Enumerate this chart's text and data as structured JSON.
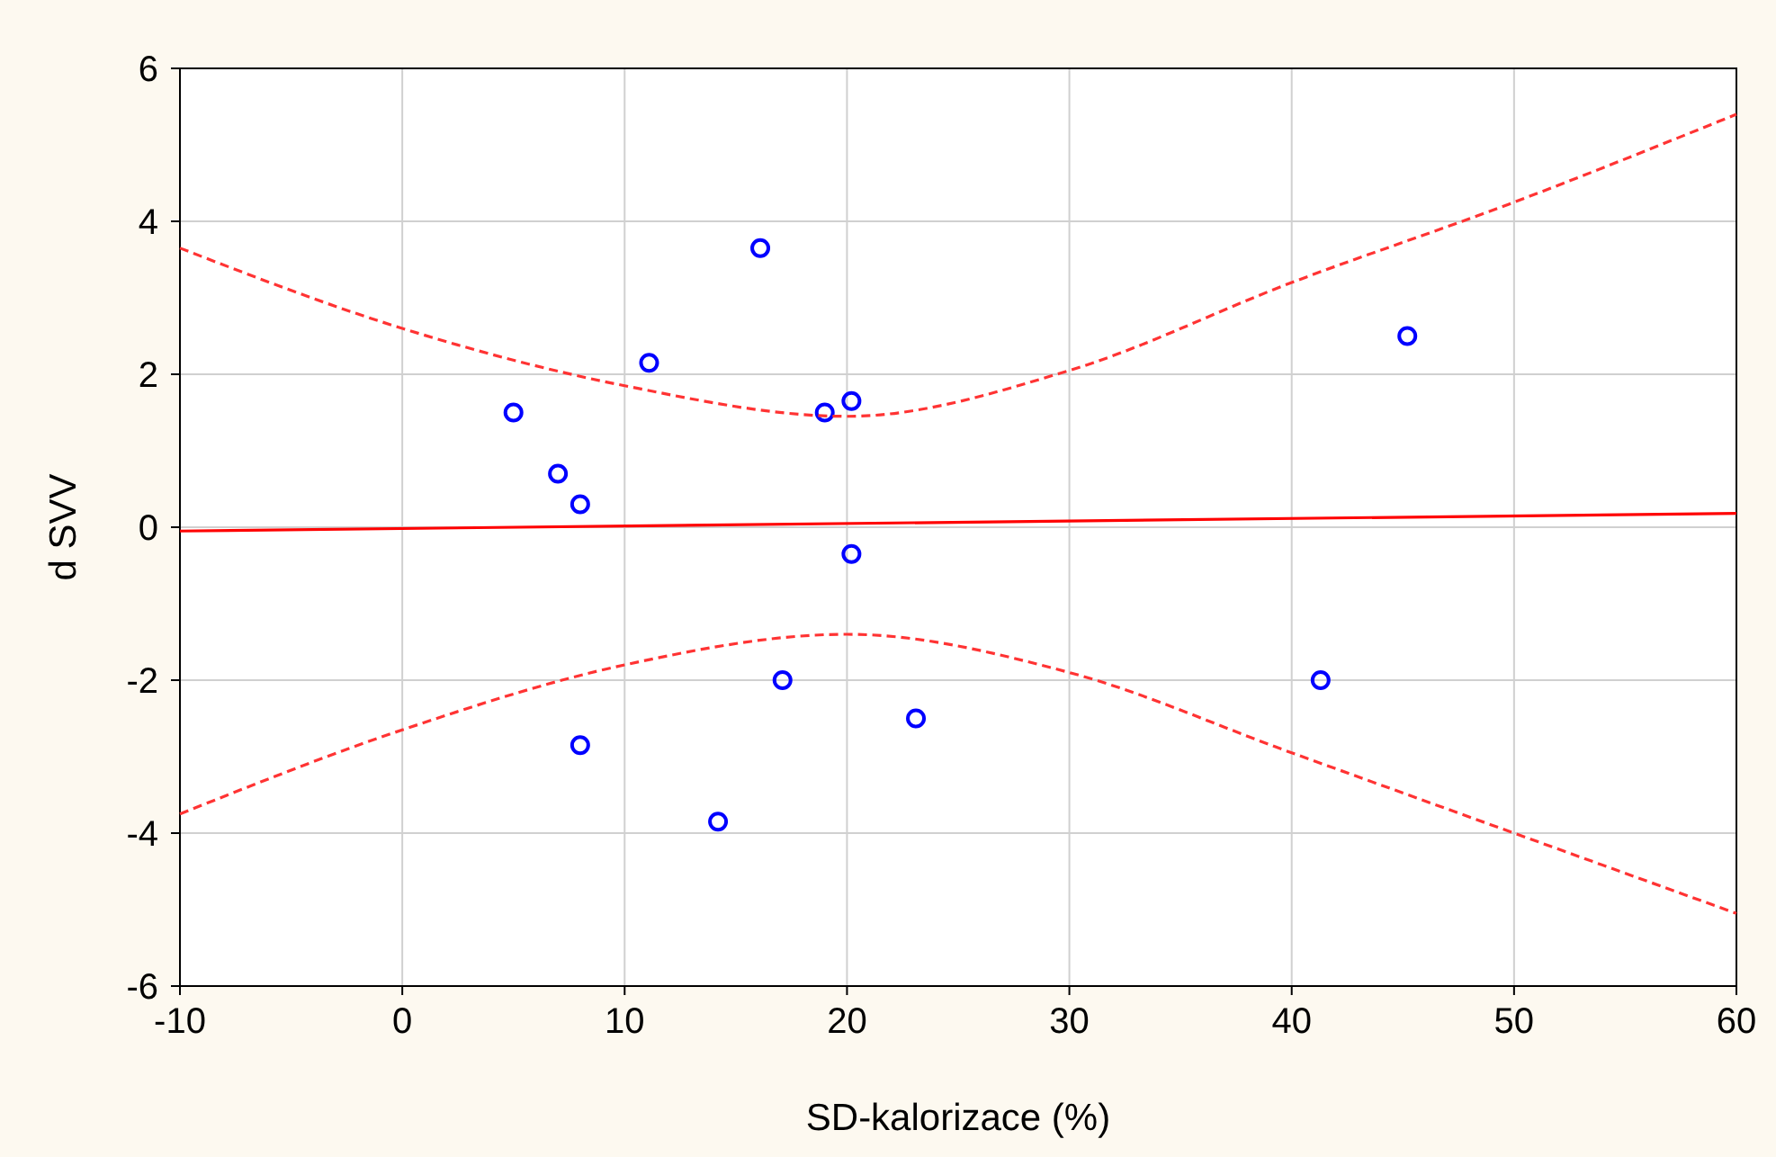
{
  "chart_data": {
    "type": "scatter",
    "xlabel": "SD-kalorizace (%)",
    "ylabel": "d SVV",
    "xlim": [
      -10,
      60
    ],
    "ylim": [
      -6,
      6
    ],
    "xticks": [
      -10,
      0,
      10,
      20,
      30,
      40,
      50,
      60
    ],
    "yticks": [
      -6,
      -4,
      -2,
      0,
      2,
      4,
      6
    ],
    "grid": true,
    "series": [
      {
        "color": "#0000ff",
        "marker": "circle",
        "x": [
          5,
          7,
          8,
          8,
          11.1,
          14.2,
          16.1,
          17.1,
          19,
          20.2,
          20.2,
          23.1,
          41.3,
          45.2
        ],
        "values": [
          1.5,
          0.7,
          0.3,
          -2.85,
          2.15,
          -3.85,
          3.65,
          -2,
          1.5,
          1.65,
          -0.35,
          -2.5,
          -2,
          2.5
        ]
      },
      {
        "type": "line",
        "color": "#ff0000",
        "marker": "none",
        "line_style": "solid",
        "x": [
          -10,
          60
        ],
        "values": [
          -0.05,
          0.18
        ]
      },
      {
        "type": "line",
        "color": "#ff3333",
        "marker": "none",
        "line_style": "dashed",
        "x": [
          -10,
          0,
          10,
          20,
          30,
          40,
          50,
          60
        ],
        "values": [
          3.65,
          2.6,
          1.85,
          1.45,
          2.05,
          3.2,
          4.25,
          5.4
        ]
      },
      {
        "type": "line",
        "color": "#ff3333",
        "marker": "none",
        "line_style": "dashed",
        "x": [
          -10,
          0,
          10,
          20,
          30,
          40,
          50,
          60
        ],
        "values": [
          -3.75,
          -2.65,
          -1.8,
          -1.4,
          -1.9,
          -2.95,
          -4,
          -5.05
        ]
      }
    ]
  }
}
